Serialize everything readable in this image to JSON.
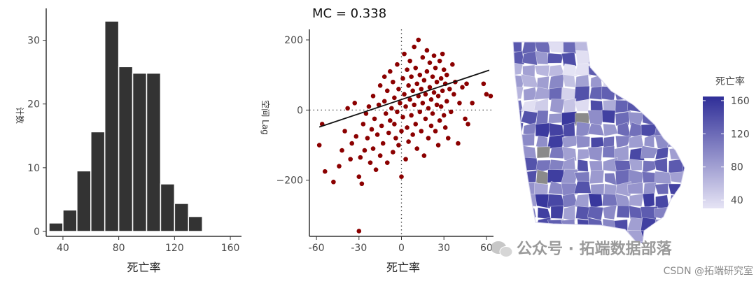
{
  "chart_data": [
    {
      "type": "bar",
      "xlabel": "死亡率",
      "ylabel": "计数",
      "x_ticks": [
        40,
        80,
        120,
        160
      ],
      "y_ticks": [
        0,
        10,
        20,
        30
      ],
      "xlim": [
        28,
        168
      ],
      "ylim": [
        0,
        35
      ],
      "bin_width": 10,
      "bins": [
        {
          "x0": 30,
          "x1": 40,
          "count": 2
        },
        {
          "x0": 40,
          "x1": 50,
          "count": 4
        },
        {
          "x0": 50,
          "x1": 60,
          "count": 10
        },
        {
          "x0": 60,
          "x1": 70,
          "count": 16
        },
        {
          "x0": 70,
          "x1": 80,
          "count": 33
        },
        {
          "x0": 80,
          "x1": 90,
          "count": 26
        },
        {
          "x0": 90,
          "x1": 100,
          "count": 25
        },
        {
          "x0": 100,
          "x1": 110,
          "count": 25
        },
        {
          "x0": 110,
          "x1": 120,
          "count": 8
        },
        {
          "x0": 120,
          "x1": 130,
          "count": 5
        },
        {
          "x0": 130,
          "x1": 140,
          "count": 3
        }
      ],
      "bar_color": "#333333",
      "grid": false
    },
    {
      "type": "scatter",
      "title": "MC = 0.338",
      "xlabel": "死亡率",
      "ylabel": "空间 Lag",
      "x_ticks": [
        -60,
        -30,
        0,
        30,
        60
      ],
      "y_ticks": [
        200,
        0,
        -200
      ],
      "y_tick_labels": [
        "200",
        "0",
        "−200"
      ],
      "xlim": [
        -65,
        65
      ],
      "ylim": [
        -360,
        230
      ],
      "point_color": "#8b0000",
      "regression_line": {
        "slope": 1.35,
        "intercept": 30
      },
      "reference_lines": {
        "x": 0,
        "y": 0,
        "style": "dotted"
      },
      "points": [
        [
          -58,
          -100
        ],
        [
          -56,
          -40
        ],
        [
          -54,
          -175
        ],
        [
          -48,
          -205
        ],
        [
          -44,
          -160
        ],
        [
          -42,
          -115
        ],
        [
          -40,
          -60
        ],
        [
          -38,
          5
        ],
        [
          -36,
          -140
        ],
        [
          -35,
          -95
        ],
        [
          -33,
          20
        ],
        [
          -32,
          -75
        ],
        [
          -30,
          -190
        ],
        [
          -30,
          -345
        ],
        [
          -29,
          -135
        ],
        [
          -28,
          -210
        ],
        [
          -27,
          -40
        ],
        [
          -26,
          -115
        ],
        [
          -25,
          -10
        ],
        [
          -24,
          -80
        ],
        [
          -23,
          10
        ],
        [
          -22,
          -150
        ],
        [
          -21,
          -55
        ],
        [
          -20,
          40
        ],
        [
          -20,
          -110
        ],
        [
          -19,
          -25
        ],
        [
          -18,
          -170
        ],
        [
          -17,
          -70
        ],
        [
          -16,
          15
        ],
        [
          -15,
          -130
        ],
        [
          -15,
          70
        ],
        [
          -14,
          -45
        ],
        [
          -13,
          -95
        ],
        [
          -12,
          25
        ],
        [
          -12,
          95
        ],
        [
          -11,
          -10
        ],
        [
          -10,
          -150
        ],
        [
          -10,
          55
        ],
        [
          -9,
          -65
        ],
        [
          -8,
          -30
        ],
        [
          -8,
          110
        ],
        [
          -7,
          5
        ],
        [
          -6,
          -120
        ],
        [
          -6,
          80
        ],
        [
          -5,
          -40
        ],
        [
          -5,
          35
        ],
        [
          -4,
          -80
        ],
        [
          -3,
          130
        ],
        [
          -3,
          -5
        ],
        [
          -2,
          60
        ],
        [
          -2,
          -100
        ],
        [
          -1,
          20
        ],
        [
          0,
          -190
        ],
        [
          0,
          -60
        ],
        [
          1,
          90
        ],
        [
          1,
          -20
        ],
        [
          2,
          160
        ],
        [
          2,
          45
        ],
        [
          3,
          -140
        ],
        [
          3,
          10
        ],
        [
          4,
          115
        ],
        [
          4,
          -50
        ],
        [
          5,
          70
        ],
        [
          5,
          -90
        ],
        [
          6,
          30
        ],
        [
          6,
          140
        ],
        [
          7,
          -15
        ],
        [
          7,
          95
        ],
        [
          8,
          55
        ],
        [
          8,
          -70
        ],
        [
          9,
          180
        ],
        [
          9,
          15
        ],
        [
          10,
          -40
        ],
        [
          10,
          120
        ],
        [
          11,
          75
        ],
        [
          11,
          -110
        ],
        [
          12,
          40
        ],
        [
          12,
          200
        ],
        [
          13,
          -5
        ],
        [
          13,
          100
        ],
        [
          14,
          60
        ],
        [
          14,
          -60
        ],
        [
          15,
          150
        ],
        [
          15,
          20
        ],
        [
          16,
          -130
        ],
        [
          16,
          85
        ],
        [
          17,
          45
        ],
        [
          17,
          -25
        ],
        [
          18,
          110
        ],
        [
          18,
          170
        ],
        [
          19,
          5
        ],
        [
          19,
          -80
        ],
        [
          20,
          65
        ],
        [
          20,
          135
        ],
        [
          21,
          -45
        ],
        [
          21,
          30
        ],
        [
          22,
          95
        ],
        [
          22,
          -10
        ],
        [
          23,
          155
        ],
        [
          23,
          50
        ],
        [
          24,
          -60
        ],
        [
          24,
          120
        ],
        [
          25,
          15
        ],
        [
          25,
          80
        ],
        [
          26,
          -100
        ],
        [
          26,
          40
        ],
        [
          27,
          140
        ],
        [
          27,
          -30
        ],
        [
          28,
          90
        ],
        [
          28,
          10
        ],
        [
          29,
          160
        ],
        [
          29,
          55
        ],
        [
          30,
          -15
        ],
        [
          30,
          115
        ],
        [
          31,
          75
        ],
        [
          31,
          -50
        ],
        [
          32,
          25
        ],
        [
          32,
          100
        ],
        [
          33,
          -80
        ],
        [
          34,
          60
        ],
        [
          35,
          -5
        ],
        [
          36,
          130
        ],
        [
          37,
          45
        ],
        [
          38,
          80
        ],
        [
          40,
          -95
        ],
        [
          41,
          20
        ],
        [
          43,
          65
        ],
        [
          45,
          -25
        ],
        [
          46,
          75
        ],
        [
          47,
          -40
        ],
        [
          50,
          20
        ],
        [
          58,
          75
        ],
        [
          60,
          45
        ],
        [
          63,
          40
        ]
      ]
    },
    {
      "type": "choropleth",
      "legend_title": "死亡率",
      "legend_ticks": [
        160,
        120,
        80,
        40
      ],
      "legend_range": [
        30,
        165
      ],
      "legend_placement": "right",
      "color_low": "#e6e4f5",
      "color_high": "#2f2e98",
      "na_color": "#8a8a8a"
    }
  ],
  "watermark": {
    "platform_label": "公众号 · 拓端数据部落",
    "credit": "CSDN @拓端研究室"
  }
}
